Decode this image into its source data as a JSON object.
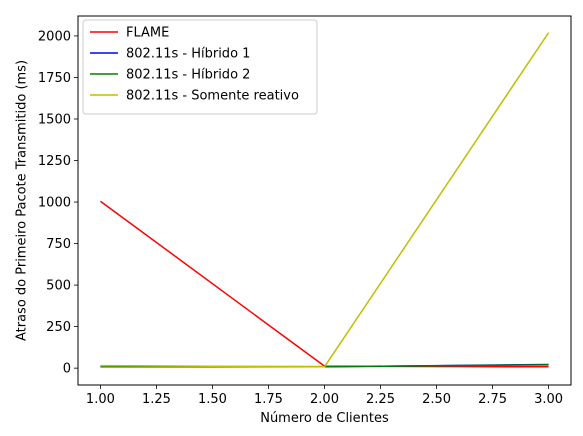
{
  "chart_data": {
    "type": "line",
    "title": "",
    "xlabel": "Número de Clientes",
    "ylabel": "Atraso do Primeiro Pacote Transmitido (ms)",
    "x": [
      1.0,
      2.0,
      3.0
    ],
    "xlim": [
      0.9,
      3.1
    ],
    "ylim": [
      -101.5,
      2120
    ],
    "x_ticks": [
      1.0,
      1.25,
      1.5,
      1.75,
      2.0,
      2.25,
      2.5,
      2.75,
      3.0
    ],
    "x_tick_labels": [
      "1.00",
      "1.25",
      "1.50",
      "1.75",
      "2.00",
      "2.25",
      "2.50",
      "2.75",
      "3.00"
    ],
    "y_ticks": [
      0,
      250,
      500,
      750,
      1000,
      1250,
      1500,
      1750,
      2000
    ],
    "y_tick_labels": [
      "0",
      "250",
      "500",
      "750",
      "1000",
      "1250",
      "1500",
      "1750",
      "2000"
    ],
    "grid": false,
    "legend_position": "top-left",
    "series": [
      {
        "name": "FLAME",
        "color": "#ff0000",
        "values": [
          1005,
          12,
          8
        ]
      },
      {
        "name": "802.11s - Híbrido 1",
        "color": "#0000ff",
        "values": [
          8,
          8,
          22
        ]
      },
      {
        "name": "802.11s - Híbrido 2",
        "color": "#008000",
        "values": [
          9,
          9,
          20
        ]
      },
      {
        "name": "802.11s - Somente reativo",
        "color": "#bfbf00",
        "values": [
          15,
          8,
          2020
        ]
      }
    ]
  }
}
